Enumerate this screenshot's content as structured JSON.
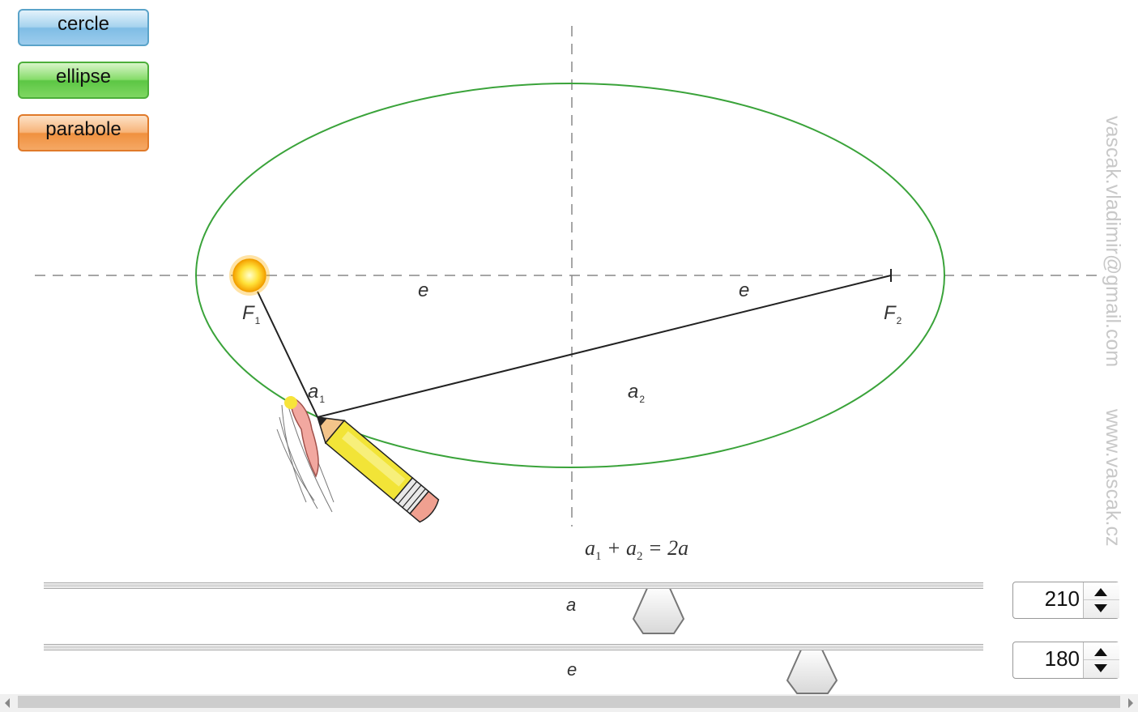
{
  "buttons": {
    "circle": "cercle",
    "ellipse": "ellipse",
    "parabola": "parabole"
  },
  "diagram": {
    "focus1": "F",
    "focus1_sub": "1",
    "focus2": "F",
    "focus2_sub": "2",
    "e_left": "e",
    "e_right": "e",
    "a1": "a",
    "a1_sub": "1",
    "a2": "a",
    "a2_sub": "2",
    "ellipse_color": "#3aa33a"
  },
  "formula": {
    "a1": "a",
    "sub1": "1",
    "plus": " + ",
    "a2": "a",
    "sub2": "2",
    "rest": " = 2a"
  },
  "sliders": {
    "a": {
      "label": "a",
      "value": "210"
    },
    "e": {
      "label": "e",
      "value": "180"
    }
  },
  "watermark": {
    "email": "vascak.vladimir@gmail.com",
    "site": "www.vascak.cz"
  }
}
